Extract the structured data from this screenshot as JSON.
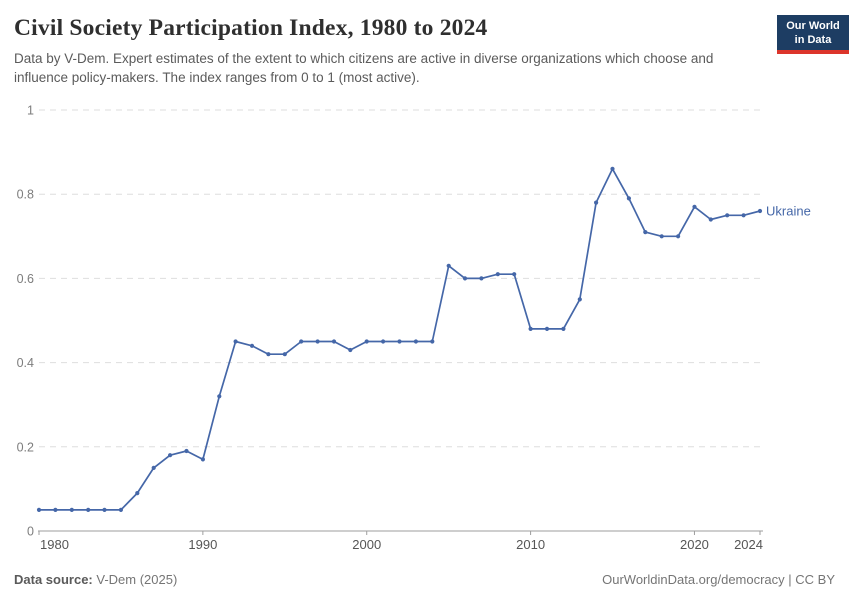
{
  "header": {
    "title": "Civil Society Participation Index, 1980 to 2024",
    "subtitle": "Data by V-Dem. Expert estimates of the extent to which citizens are active in diverse organizations which choose and influence policy-makers. The index ranges from 0 to 1 (most active).",
    "logo": {
      "line1": "Our World",
      "line2": "in Data",
      "bg": "#1d3d63",
      "accent": "#dc352b"
    }
  },
  "chart_data": {
    "type": "line",
    "title": "Civil Society Participation Index, 1980 to 2024",
    "xlabel": "",
    "ylabel": "",
    "xlim": [
      1980,
      2024
    ],
    "ylim": [
      0,
      1
    ],
    "xticks": [
      1980,
      1990,
      2000,
      2010,
      2020,
      2024
    ],
    "yticks": [
      0,
      0.2,
      0.4,
      0.6,
      0.8,
      1
    ],
    "ytick_labels": [
      "0",
      "0.2",
      "0.4",
      "0.6",
      "0.8",
      "1"
    ],
    "grid": "horizontal-dashed",
    "legend_position": "end-of-line-label",
    "series": [
      {
        "name": "Ukraine",
        "color": "#4567a8",
        "x": [
          1980,
          1981,
          1982,
          1983,
          1984,
          1985,
          1986,
          1987,
          1988,
          1989,
          1990,
          1991,
          1992,
          1993,
          1994,
          1995,
          1996,
          1997,
          1998,
          1999,
          2000,
          2001,
          2002,
          2003,
          2004,
          2005,
          2006,
          2007,
          2008,
          2009,
          2010,
          2011,
          2012,
          2013,
          2014,
          2015,
          2016,
          2017,
          2018,
          2019,
          2020,
          2021,
          2022,
          2023,
          2024
        ],
        "values": [
          0.05,
          0.05,
          0.05,
          0.05,
          0.05,
          0.05,
          0.09,
          0.15,
          0.18,
          0.19,
          0.17,
          0.32,
          0.45,
          0.44,
          0.42,
          0.42,
          0.45,
          0.45,
          0.45,
          0.43,
          0.45,
          0.45,
          0.45,
          0.45,
          0.45,
          0.63,
          0.6,
          0.6,
          0.61,
          0.61,
          0.48,
          0.48,
          0.48,
          0.55,
          0.78,
          0.86,
          0.79,
          0.71,
          0.7,
          0.7,
          0.77,
          0.74,
          0.75,
          0.75,
          0.76
        ]
      }
    ],
    "style": {
      "grid_color": "#dedede",
      "axis_color": "#9e9e9e",
      "ytick_label_color": "#7d7d7d",
      "xtick_label_color": "#565656"
    }
  },
  "footer": {
    "source_label": "Data source:",
    "source_value": " V-Dem (2025)",
    "credit": "OurWorldinData.org/democracy | CC BY"
  }
}
